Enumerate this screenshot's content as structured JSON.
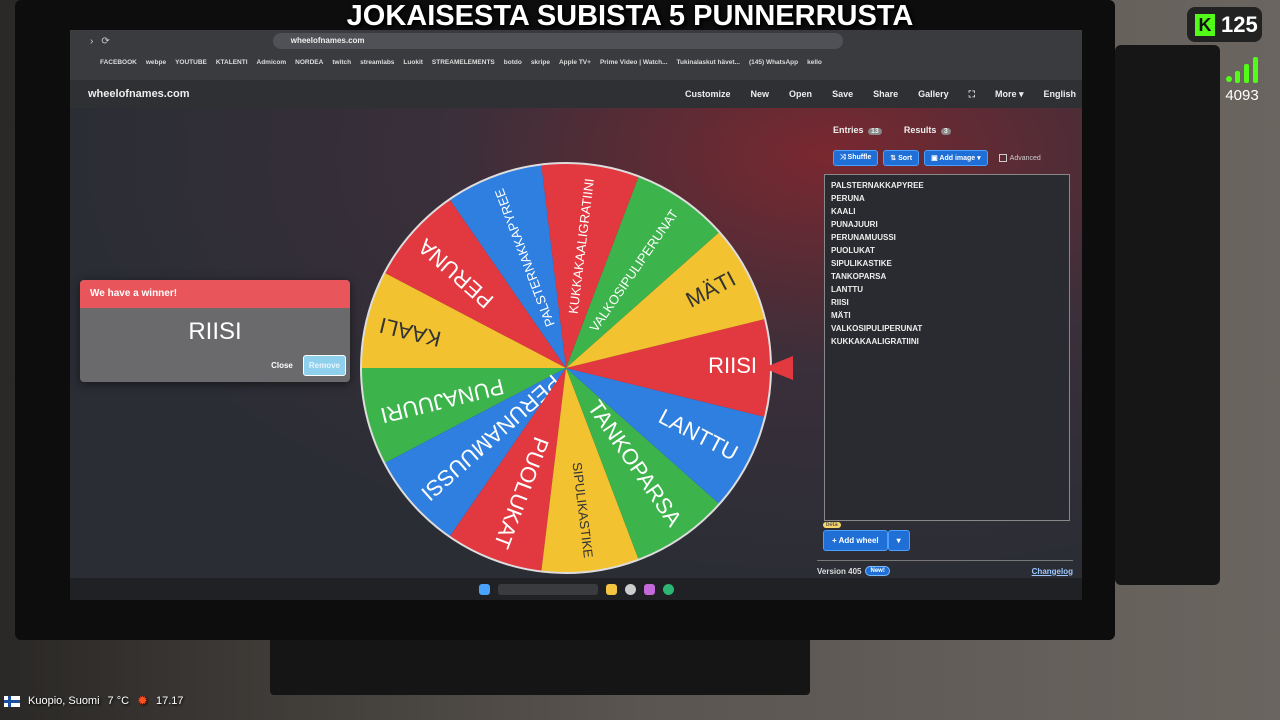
{
  "stream": {
    "title": "JOKAISESTA SUBISTA 5 PUNNERRUSTA",
    "kick_count": "125",
    "viewers": "4093",
    "location": "Kuopio, Suomi",
    "temperature": "7 °C",
    "time": "17.17",
    "colors": {
      "kick": "#53fc18"
    }
  },
  "browser": {
    "url": "wheelofnames.com",
    "bookmarks": [
      "FACEBOOK",
      "webpe",
      "YOUTUBE",
      "KTALENTI",
      "Admicom",
      "NORDEA",
      "twitch",
      "streamlabs",
      "Luokit",
      "STREAMELEMENTS",
      "botdo",
      "skripe",
      "Apple TV+",
      "Prime Video | Watch...",
      "Tukinalaskut hävet...",
      "(145) WhatsApp",
      "kello"
    ]
  },
  "app": {
    "logo": "wheelofnames.com",
    "menu": [
      "Customize",
      "New",
      "Open",
      "Save",
      "Share",
      "Gallery",
      "",
      "More ▾",
      "English"
    ]
  },
  "panel": {
    "tab_entries": "Entries",
    "entries_count": "13",
    "tab_results": "Results",
    "results_count": "3",
    "shuffle": "Shuffle",
    "sort": "Sort",
    "add_image": "Add image ▾",
    "advanced": "Advanced",
    "add_wheel": "Add wheel",
    "beta": "beta",
    "version": "Version 405",
    "new_badge": "New!",
    "changelog": "Changelog"
  },
  "wheel": {
    "entries": [
      {
        "label": "PALSTERNAKKAPYREE",
        "color": "#2f7fe0"
      },
      {
        "label": "PERUNA",
        "color": "#e2383f"
      },
      {
        "label": "KAALI",
        "color": "#f2c230"
      },
      {
        "label": "PUNAJUURI",
        "color": "#3cb44b"
      },
      {
        "label": "PERUNAMUUSSI",
        "color": "#2f7fe0"
      },
      {
        "label": "PUOLUKAT",
        "color": "#e2383f"
      },
      {
        "label": "SIPULIKASTIKE",
        "color": "#f2c230"
      },
      {
        "label": "TANKOPARSA",
        "color": "#3cb44b"
      },
      {
        "label": "LANTTU",
        "color": "#2f7fe0"
      },
      {
        "label": "RIISI",
        "color": "#e2383f"
      },
      {
        "label": "MÄTI",
        "color": "#f2c230"
      },
      {
        "label": "VALKOSIPULIPERUNAT",
        "color": "#3cb44b"
      },
      {
        "label": "KUKKAKAALIGRATIINI",
        "color": "#e2383f"
      }
    ]
  },
  "dialog": {
    "title": "We have a winner!",
    "winner": "RIISI",
    "close": "Close",
    "remove": "Remove"
  }
}
